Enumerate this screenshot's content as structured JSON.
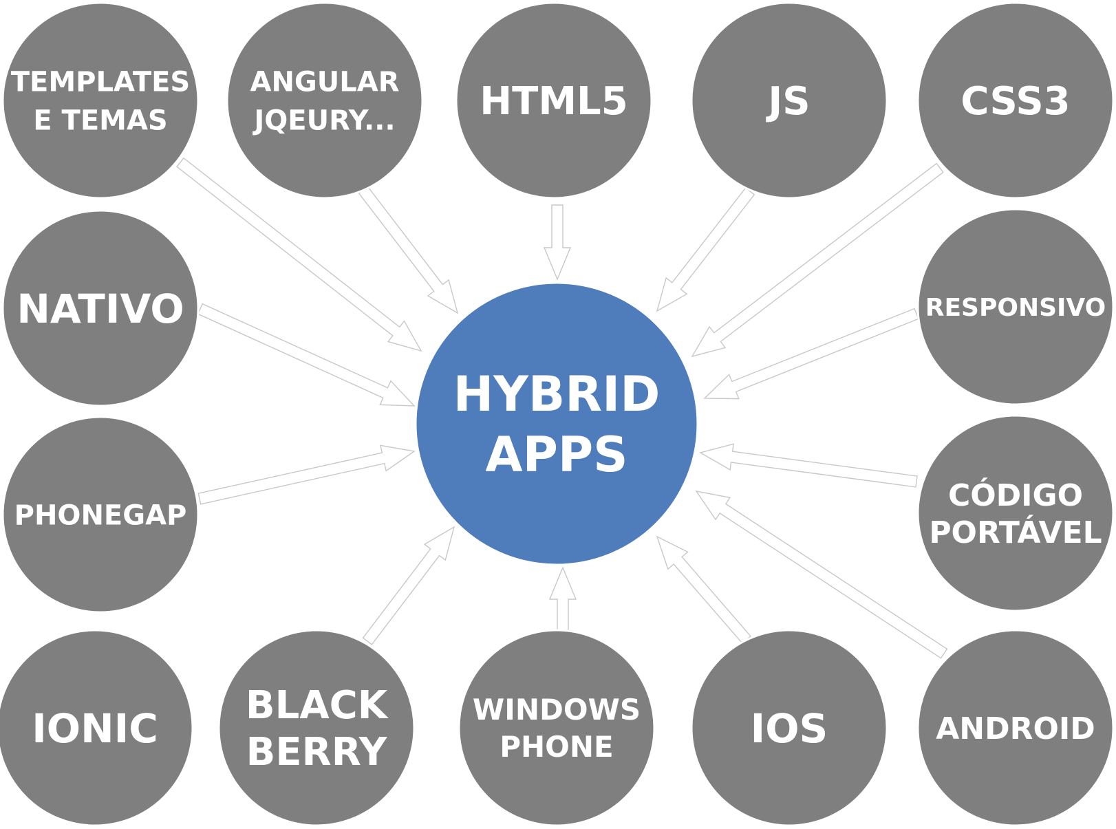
{
  "colors": {
    "center_fill": "#4f7dbb",
    "node_fill": "#7f7f7f",
    "text": "#ffffff",
    "arrow_fill": "#ffffff",
    "arrow_stroke": "#c8c8c8"
  },
  "center": {
    "lines": [
      "HYBRID",
      "APPS"
    ]
  },
  "nodes": [
    {
      "id": "templates",
      "lines": [
        "TEMPLATES",
        "E TEMAS"
      ]
    },
    {
      "id": "angular",
      "lines": [
        "ANGULAR",
        "JQEURY..."
      ]
    },
    {
      "id": "html5",
      "lines": [
        "HTML5"
      ]
    },
    {
      "id": "js",
      "lines": [
        "JS"
      ]
    },
    {
      "id": "css3",
      "lines": [
        "CSS3"
      ]
    },
    {
      "id": "nativo",
      "lines": [
        "NATIVO"
      ]
    },
    {
      "id": "responsivo",
      "lines": [
        "RESPONSIVO"
      ]
    },
    {
      "id": "phonegap",
      "lines": [
        "PHONEGAP"
      ]
    },
    {
      "id": "codigo-portavel",
      "lines": [
        "CÓDIGO",
        "PORTÁVEL"
      ]
    },
    {
      "id": "ionic",
      "lines": [
        "IONIC"
      ]
    },
    {
      "id": "blackberry",
      "lines": [
        "BLACK",
        "BERRY"
      ]
    },
    {
      "id": "windows-phone",
      "lines": [
        "WINDOWS",
        "PHONE"
      ]
    },
    {
      "id": "ios",
      "lines": [
        "IOS"
      ]
    },
    {
      "id": "android",
      "lines": [
        "ANDROID"
      ]
    }
  ],
  "edges": [
    {
      "from": "templates",
      "to": "center"
    },
    {
      "from": "angular",
      "to": "center"
    },
    {
      "from": "html5",
      "to": "center"
    },
    {
      "from": "js",
      "to": "center"
    },
    {
      "from": "css3",
      "to": "center"
    },
    {
      "from": "nativo",
      "to": "center"
    },
    {
      "from": "responsivo",
      "to": "center"
    },
    {
      "from": "phonegap",
      "to": "center"
    },
    {
      "from": "codigo-portavel",
      "to": "center"
    },
    {
      "from": "blackberry",
      "to": "center"
    },
    {
      "from": "windows-phone",
      "to": "center"
    },
    {
      "from": "ios",
      "to": "center"
    },
    {
      "from": "android",
      "to": "center"
    }
  ]
}
